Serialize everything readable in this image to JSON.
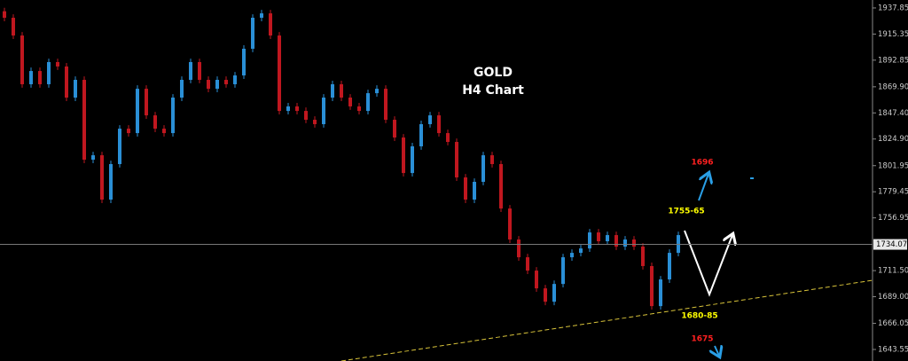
{
  "chart_data": {
    "type": "candlestick",
    "title": "GOLD",
    "subtitle": "H4 Chart",
    "annotations": [
      "1696",
      "1755-65",
      "1680-85",
      "1675"
    ],
    "up_color": "#2a8fd6",
    "down_color": "#c0171f",
    "open": [
      1935.0,
      1929.4,
      1914.1,
      1872.1,
      1883.5,
      1872.1,
      1891.2,
      1887.4,
      1860.6,
      1875.9,
      1807.1,
      1810.9,
      1772.7,
      1803.3,
      1833.8,
      1830.0,
      1868.2,
      1845.3,
      1833.8,
      1830.0,
      1860.6,
      1875.9,
      1891.2,
      1875.9,
      1868.2,
      1875.9,
      1872.1,
      1879.7,
      1902.7,
      1929.4,
      1933.2,
      1914.1,
      1849.1,
      1853.0,
      1849.1,
      1841.5,
      1837.7,
      1860.6,
      1872.1,
      1860.6,
      1853.0,
      1849.1,
      1864.4,
      1868.2,
      1841.5,
      1826.2,
      1795.6,
      1818.6,
      1837.7,
      1845.3,
      1830.0,
      1822.4,
      1791.8,
      1772.7,
      1788.0,
      1810.9,
      1803.3,
      1765.0,
      1738.3,
      1723.0,
      1711.5,
      1696.2,
      1684.7,
      1700.0,
      1723.0,
      1726.8,
      1730.6,
      1744.4,
      1736.8,
      1742.1,
      1732.2,
      1738.3,
      1732.2,
      1715.4,
      1680.9,
      1703.9,
      1726.8
    ],
    "high": [
      1938.0,
      1932.4,
      1917.1,
      1886.5,
      1886.5,
      1894.2,
      1894.2,
      1890.4,
      1878.9,
      1878.9,
      1813.9,
      1813.9,
      1806.3,
      1836.8,
      1836.8,
      1871.2,
      1871.2,
      1848.3,
      1836.8,
      1863.6,
      1878.9,
      1894.2,
      1894.2,
      1878.9,
      1878.9,
      1878.9,
      1882.7,
      1905.7,
      1932.4,
      1936.2,
      1936.2,
      1917.1,
      1856.0,
      1856.0,
      1852.1,
      1844.5,
      1863.6,
      1875.1,
      1875.1,
      1863.6,
      1856.0,
      1867.4,
      1871.2,
      1871.2,
      1844.5,
      1829.2,
      1821.6,
      1840.7,
      1848.3,
      1848.3,
      1833.0,
      1825.4,
      1794.8,
      1791.0,
      1813.9,
      1813.9,
      1806.3,
      1768.0,
      1741.3,
      1726.0,
      1714.5,
      1699.2,
      1703.0,
      1726.0,
      1729.8,
      1733.6,
      1747.4,
      1747.4,
      1745.1,
      1745.1,
      1741.3,
      1741.3,
      1735.2,
      1718.4,
      1706.9,
      1729.8,
      1745.1
    ],
    "low": [
      1926.4,
      1911.1,
      1869.1,
      1869.1,
      1869.1,
      1869.1,
      1884.4,
      1857.6,
      1857.6,
      1804.1,
      1804.1,
      1769.7,
      1769.7,
      1800.3,
      1827.0,
      1827.0,
      1842.3,
      1830.8,
      1827.0,
      1827.0,
      1857.6,
      1872.9,
      1872.9,
      1865.2,
      1865.2,
      1869.1,
      1869.1,
      1876.7,
      1899.7,
      1926.4,
      1911.1,
      1846.1,
      1846.1,
      1846.1,
      1838.5,
      1834.7,
      1834.7,
      1857.6,
      1857.6,
      1850.0,
      1846.1,
      1846.1,
      1861.4,
      1838.5,
      1823.2,
      1792.6,
      1792.6,
      1815.6,
      1834.7,
      1827.0,
      1819.4,
      1788.8,
      1769.7,
      1769.7,
      1785.0,
      1800.3,
      1762.0,
      1735.3,
      1720.0,
      1708.5,
      1693.2,
      1681.7,
      1681.7,
      1697.0,
      1720.0,
      1723.8,
      1727.6,
      1733.8,
      1733.8,
      1729.2,
      1729.2,
      1729.2,
      1712.4,
      1677.9,
      1677.9,
      1700.9,
      1723.8
    ],
    "close": [
      1929.4,
      1914.1,
      1872.1,
      1883.5,
      1872.1,
      1891.2,
      1887.4,
      1860.6,
      1875.9,
      1807.1,
      1810.9,
      1772.7,
      1803.3,
      1833.8,
      1830.0,
      1868.2,
      1845.3,
      1833.8,
      1830.0,
      1860.6,
      1875.9,
      1891.2,
      1875.9,
      1868.2,
      1875.9,
      1872.1,
      1879.7,
      1902.7,
      1929.4,
      1933.2,
      1914.1,
      1849.1,
      1853.0,
      1849.1,
      1841.5,
      1837.7,
      1860.6,
      1872.1,
      1860.6,
      1853.0,
      1849.1,
      1864.4,
      1868.2,
      1841.5,
      1826.2,
      1795.6,
      1818.6,
      1837.7,
      1845.3,
      1830.0,
      1822.4,
      1791.8,
      1772.7,
      1788.0,
      1810.9,
      1803.3,
      1765.0,
      1738.3,
      1723.0,
      1711.5,
      1696.2,
      1684.7,
      1700.0,
      1723.0,
      1726.8,
      1730.6,
      1744.4,
      1736.8,
      1742.1,
      1732.2,
      1738.3,
      1732.2,
      1715.4,
      1680.9,
      1703.9,
      1726.8,
      1742.1
    ],
    "current_price": 1734.07,
    "ylim": [
      1633.6,
      1944.7
    ],
    "yticks": [
      1937.85,
      1915.35,
      1892.85,
      {
        "value": 1869.9,
        "label": "1869.90"
      },
      {
        "value": 1847.4,
        "label": "1847.40"
      },
      {
        "value": 1824.9,
        "label": "1824.90"
      },
      1801.95,
      1779.45,
      1756.95,
      {
        "value": 1711.5,
        "label": "1711.50"
      },
      {
        "value": 1689,
        "label": "1689.00"
      },
      1666.05,
      1643.55
    ]
  }
}
